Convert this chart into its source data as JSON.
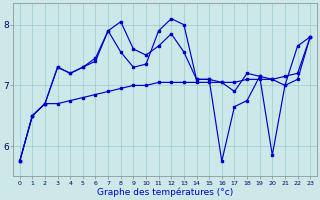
{
  "xlabel": "Graphe des températures (°c)",
  "bg_color": "#cce8e8",
  "line_color": "#0000cc",
  "ylim": [
    5.5,
    8.35
  ],
  "xlim": [
    -0.5,
    23.5
  ],
  "yticks": [
    6,
    7,
    8
  ],
  "xticks": [
    0,
    1,
    2,
    3,
    4,
    5,
    6,
    7,
    8,
    9,
    10,
    11,
    12,
    13,
    14,
    15,
    16,
    17,
    18,
    19,
    20,
    21,
    22,
    23
  ],
  "series1_x": [
    0,
    1,
    2,
    3,
    4,
    5,
    6,
    7,
    8,
    9,
    10,
    11,
    12,
    13,
    14,
    15,
    16,
    17,
    18,
    19,
    20,
    21,
    22,
    23
  ],
  "series1_y": [
    5.75,
    6.5,
    6.7,
    6.7,
    6.75,
    6.8,
    6.85,
    6.9,
    6.95,
    7.0,
    7.0,
    7.05,
    7.05,
    7.05,
    7.05,
    7.05,
    7.05,
    7.05,
    7.1,
    7.1,
    7.1,
    7.15,
    7.2,
    7.8
  ],
  "series2_x": [
    0,
    1,
    2,
    3,
    4,
    5,
    6,
    7,
    8,
    9,
    10,
    11,
    12,
    13,
    14,
    15,
    16,
    17,
    18,
    19,
    20,
    21,
    22,
    23
  ],
  "series2_y": [
    5.75,
    6.5,
    6.7,
    7.3,
    7.2,
    7.3,
    7.45,
    7.9,
    7.55,
    7.3,
    7.35,
    7.9,
    8.1,
    8.0,
    7.1,
    7.1,
    7.05,
    6.9,
    7.2,
    7.15,
    7.1,
    7.0,
    7.1,
    7.8
  ],
  "series3_x": [
    0,
    1,
    2,
    3,
    4,
    5,
    6,
    7,
    8,
    9,
    10,
    11,
    12,
    13,
    14,
    15,
    16,
    17,
    18,
    19,
    20,
    21,
    22,
    23
  ],
  "series3_y": [
    5.75,
    6.5,
    6.7,
    7.3,
    7.2,
    7.3,
    7.4,
    7.9,
    8.05,
    7.6,
    7.5,
    7.65,
    7.85,
    7.55,
    7.1,
    7.1,
    5.75,
    6.65,
    6.75,
    7.15,
    5.85,
    7.0,
    7.65,
    7.8
  ]
}
